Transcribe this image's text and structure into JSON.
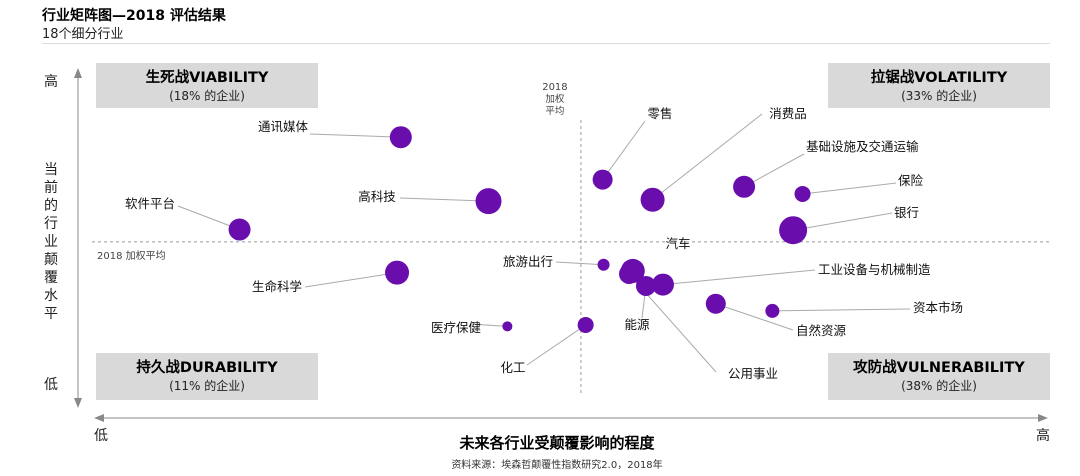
{
  "header": {
    "title": "行业矩阵图—2018 评估结果",
    "subtitle": "18个细分行业"
  },
  "colors": {
    "bubble": "#6a0dad",
    "quadrant_box": "#d9d9d9",
    "leader": "#aaaaaa",
    "axis": "#888888"
  },
  "chart_data": {
    "type": "scatter",
    "title": "行业矩阵图—2018 评估结果",
    "subtitle": "18个细分行业",
    "xlabel": "未来各行业受颠覆影响的程度",
    "ylabel": "当前的行业颠覆水平",
    "x_low": "低",
    "x_high": "高",
    "y_low": "低",
    "y_high": "高",
    "xlim": [
      0,
      100
    ],
    "ylim": [
      0,
      100
    ],
    "avg_x_label": "2018\n加权\n平均",
    "avg_y_label": "2018 加权平均",
    "avg_x": 51,
    "avg_y": 48,
    "source": "资料来源：埃森哲颠覆性指数研究2.0，2018年",
    "quadrants": [
      {
        "name": "生死战VIABILITY",
        "share": "(18% 的企业)",
        "position": "top-left"
      },
      {
        "name": "拉锯战VOLATILITY",
        "share": "(33% 的企业)",
        "position": "top-right"
      },
      {
        "name": "持久战DURABILITY",
        "share": "(11% 的企业)",
        "position": "bottom-left"
      },
      {
        "name": "攻防战VULNERABILITY",
        "share": "(38% 的企业)",
        "position": "bottom-right"
      }
    ],
    "points": [
      {
        "label": "通讯媒体",
        "x": 31.9,
        "y": 78.6,
        "size": 11
      },
      {
        "label": "软件平台",
        "x": 14.8,
        "y": 51.6,
        "size": 11
      },
      {
        "label": "高科技",
        "x": 41.2,
        "y": 59.9,
        "size": 13
      },
      {
        "label": "生命科学",
        "x": 31.5,
        "y": 39.0,
        "size": 12
      },
      {
        "label": "医疗保健",
        "x": 43.2,
        "y": 23.3,
        "size": 5
      },
      {
        "label": "化工",
        "x": 51.5,
        "y": 23.7,
        "size": 8
      },
      {
        "label": "旅游出行",
        "x": 53.4,
        "y": 41.3,
        "size": 6
      },
      {
        "label": "零售",
        "x": 53.3,
        "y": 66.2,
        "size": 10
      },
      {
        "label": "消费品",
        "x": 58.6,
        "y": 60.3,
        "size": 12
      },
      {
        "label": "汽车",
        "x": 56.5,
        "y": 39.5,
        "size": 12
      },
      {
        "label": "能源",
        "x": 57.9,
        "y": 35.1,
        "size": 10
      },
      {
        "label": "公用事业",
        "x": 56.1,
        "y": 38.6,
        "size": 10
      },
      {
        "label": "工业设备与机械制造",
        "x": 59.7,
        "y": 35.5,
        "size": 11
      },
      {
        "label": "基础设施及交通运输",
        "x": 68.3,
        "y": 64.1,
        "size": 11
      },
      {
        "label": "保险",
        "x": 74.5,
        "y": 62.0,
        "size": 8
      },
      {
        "label": "银行",
        "x": 73.5,
        "y": 51.4,
        "size": 14
      },
      {
        "label": "自然资源",
        "x": 65.3,
        "y": 29.9,
        "size": 10
      },
      {
        "label": "资本市场",
        "x": 71.3,
        "y": 27.8,
        "size": 7
      }
    ],
    "grid": false,
    "legend": "none"
  }
}
